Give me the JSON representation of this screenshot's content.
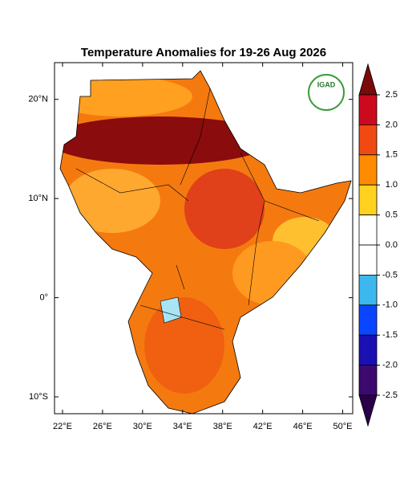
{
  "title": "Temperature Anomalies for 19-26 Aug 2026",
  "logo": "IGAD",
  "map": {
    "xlim": [
      21.2,
      51
    ],
    "ylim": [
      -11.7,
      23.7
    ],
    "xticks": [
      {
        "value": 22,
        "label": "22°E"
      },
      {
        "value": 26,
        "label": "26°E"
      },
      {
        "value": 30,
        "label": "30°E"
      },
      {
        "value": 34,
        "label": "34°E"
      },
      {
        "value": 38,
        "label": "38°E"
      },
      {
        "value": 42,
        "label": "42°E"
      },
      {
        "value": 46,
        "label": "46°E"
      },
      {
        "value": 50,
        "label": "50°E"
      }
    ],
    "yticks": [
      {
        "value": 20,
        "label": "20°N"
      },
      {
        "value": 10,
        "label": "10°N"
      },
      {
        "value": 0,
        "label": "0°"
      },
      {
        "value": -10,
        "label": "10°S"
      }
    ]
  },
  "colorbar": {
    "ticks": [
      {
        "value": 2.5,
        "label": "2.5"
      },
      {
        "value": 2,
        "label": "2.0"
      },
      {
        "value": 1.5,
        "label": "1.5"
      },
      {
        "value": 1,
        "label": "1.0"
      },
      {
        "value": 0.5,
        "label": "0.5"
      },
      {
        "value": 0,
        "label": "0.0"
      },
      {
        "value": -0.5,
        "label": "-0.5"
      },
      {
        "value": -1,
        "label": "-1.0"
      },
      {
        "value": -1.5,
        "label": "-1.5"
      },
      {
        "value": -2,
        "label": "-2.0"
      },
      {
        "value": -2.5,
        "label": "-2.5"
      }
    ],
    "colors": [
      "#7a0a0a",
      "#cc0a1e",
      "#f04a12",
      "#ff8c00",
      "#ffd21f",
      "#ffffff",
      "#ffffff",
      "#3cb8ee",
      "#0a46ff",
      "#1a10b4",
      "#3c0a6e",
      "#2a0048"
    ]
  }
}
